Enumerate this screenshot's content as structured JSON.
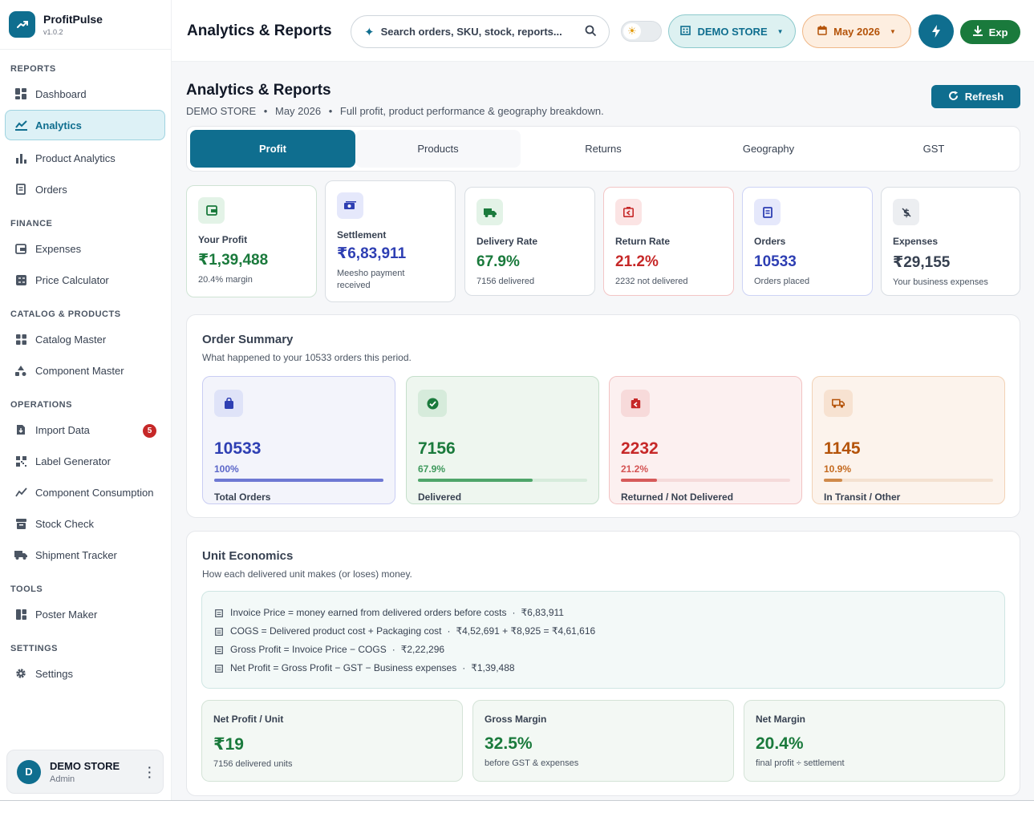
{
  "brand": {
    "name": "ProfitPulse",
    "version": "v1.0.2"
  },
  "sidebar": {
    "sections": [
      "REPORTS",
      "FINANCE",
      "CATALOG & PRODUCTS",
      "OPERATIONS",
      "TOOLS",
      "SETTINGS"
    ],
    "items": [
      {
        "label": "Dashboard",
        "icon": "dashboard-icon"
      },
      {
        "label": "Analytics",
        "icon": "analytics-icon",
        "active": true
      },
      {
        "label": "Product Analytics",
        "icon": "bar-chart-icon"
      },
      {
        "label": "Orders",
        "icon": "orders-icon"
      },
      {
        "label": "Expenses",
        "icon": "wallet-icon"
      },
      {
        "label": "Price Calculator",
        "icon": "calculator-icon"
      },
      {
        "label": "Catalog Master",
        "icon": "grid-icon"
      },
      {
        "label": "Component Master",
        "icon": "shapes-icon"
      },
      {
        "label": "Import Data",
        "icon": "file-import-icon",
        "badge": "5"
      },
      {
        "label": "Label Generator",
        "icon": "qr-code-icon"
      },
      {
        "label": "Component Consumption",
        "icon": "line-chart-icon"
      },
      {
        "label": "Stock Check",
        "icon": "archive-icon"
      },
      {
        "label": "Shipment Tracker",
        "icon": "truck-icon"
      },
      {
        "label": "Poster Maker",
        "icon": "layout-icon"
      },
      {
        "label": "Settings",
        "icon": "gear-icon"
      }
    ],
    "user": {
      "initial": "D",
      "name": "DEMO STORE",
      "role": "Admin"
    }
  },
  "topbar": {
    "title": "Analytics & Reports",
    "search_placeholder": "Search orders, SKU, stock, reports...",
    "store": "DEMO STORE",
    "month": "May 2026",
    "export_label": "Exp"
  },
  "page": {
    "title": "Analytics & Reports",
    "subtitle_store": "DEMO STORE",
    "subtitle_month": "May 2026",
    "subtitle_desc": "Full profit, product performance & geography breakdown.",
    "refresh_label": "Refresh"
  },
  "tabs": [
    "Profit",
    "Products",
    "Returns",
    "Geography",
    "GST"
  ],
  "kpis": [
    {
      "label": "Your Profit",
      "value": "₹1,39,488",
      "note": "20.4% margin",
      "color": "#1a7a3c"
    },
    {
      "label": "Settlement",
      "value": "₹6,83,911",
      "note": "Meesho payment received",
      "color": "#2e3fb3"
    },
    {
      "label": "Delivery Rate",
      "value": "67.9%",
      "note": "7156 delivered",
      "color": "#1a7a3c"
    },
    {
      "label": "Return Rate",
      "value": "21.2%",
      "note": "2232 not delivered",
      "color": "#c62828"
    },
    {
      "label": "Orders",
      "value": "10533",
      "note": "Orders placed",
      "color": "#2e3fb3"
    },
    {
      "label": "Expenses",
      "value": "₹29,155",
      "note": "Your business expenses",
      "color": "#374151"
    }
  ],
  "order_summary": {
    "title": "Order Summary",
    "subtitle": "What happened to your 10533 orders this period.",
    "cards": [
      {
        "value": "10533",
        "percent": "100%",
        "fraction": 1.0,
        "label": "Total Orders",
        "color": "#2e3fb3"
      },
      {
        "value": "7156",
        "percent": "67.9%",
        "fraction": 0.679,
        "label": "Delivered",
        "color": "#1a7a3c"
      },
      {
        "value": "2232",
        "percent": "21.2%",
        "fraction": 0.212,
        "label": "Returned / Not Delivered",
        "color": "#c62828"
      },
      {
        "value": "1145",
        "percent": "10.9%",
        "fraction": 0.109,
        "label": "In Transit / Other",
        "color": "#b45309"
      }
    ]
  },
  "unit_economics": {
    "title": "Unit Economics",
    "subtitle": "How each delivered unit makes (or loses) money.",
    "formulas": [
      {
        "text": "Invoice Price = money earned from delivered orders before costs",
        "value": "₹6,83,911"
      },
      {
        "text": "COGS = Delivered product cost + Packaging cost",
        "value": "₹4,52,691 + ₹8,925 = ₹4,61,616"
      },
      {
        "text": "Gross Profit = Invoice Price − COGS",
        "value": "₹2,22,296"
      },
      {
        "text": "Net Profit = Gross Profit − GST − Business expenses",
        "value": "₹1,39,488"
      }
    ],
    "metrics": [
      {
        "label": "Net Profit / Unit",
        "value": "₹19",
        "note": "7156 delivered units"
      },
      {
        "label": "Gross Margin",
        "value": "32.5%",
        "note": "before GST & expenses"
      },
      {
        "label": "Net Margin",
        "value": "20.4%",
        "note": "final profit ÷ settlement"
      }
    ]
  }
}
